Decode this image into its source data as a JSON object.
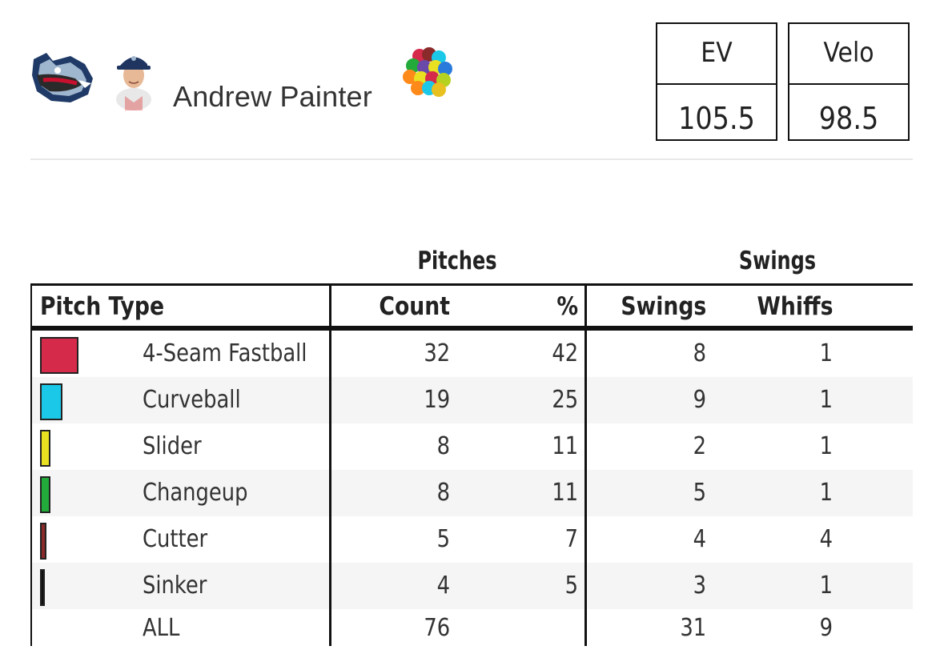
{
  "player": {
    "name": "Andrew Painter",
    "team_logo_icon": "team-logo-icon",
    "photo_icon": "player-headshot-icon",
    "pitch_mix_icon": "pitch-mix-icon"
  },
  "stat_boxes": [
    {
      "label": "EV",
      "value": "105.5"
    },
    {
      "label": "Velo",
      "value": "98.5"
    }
  ],
  "table": {
    "group_headers": {
      "pitches": "Pitches",
      "swings": "Swings"
    },
    "columns": [
      "Pitch Type",
      "Count",
      "%",
      "Swings",
      "Whiffs"
    ],
    "rows": [
      {
        "name": "4-Seam Fastball",
        "count": "32",
        "pct": "42",
        "swings": "8",
        "whiffs": "1",
        "color": "#d62a4a"
      },
      {
        "name": "Curveball",
        "count": "19",
        "pct": "25",
        "swings": "9",
        "whiffs": "1",
        "color": "#1cc8e8"
      },
      {
        "name": "Slider",
        "count": "8",
        "pct": "11",
        "swings": "2",
        "whiffs": "1",
        "color": "#e8e020"
      },
      {
        "name": "Changeup",
        "count": "8",
        "pct": "11",
        "swings": "5",
        "whiffs": "1",
        "color": "#22aa3a"
      },
      {
        "name": "Cutter",
        "count": "5",
        "pct": "7",
        "swings": "4",
        "whiffs": "4",
        "color": "#8a2a2a"
      },
      {
        "name": "Sinker",
        "count": "4",
        "pct": "5",
        "swings": "3",
        "whiffs": "1",
        "color": "#111111"
      }
    ],
    "total": {
      "name": "ALL",
      "count": "76",
      "pct": "",
      "swings": "31",
      "whiffs": "9"
    }
  }
}
